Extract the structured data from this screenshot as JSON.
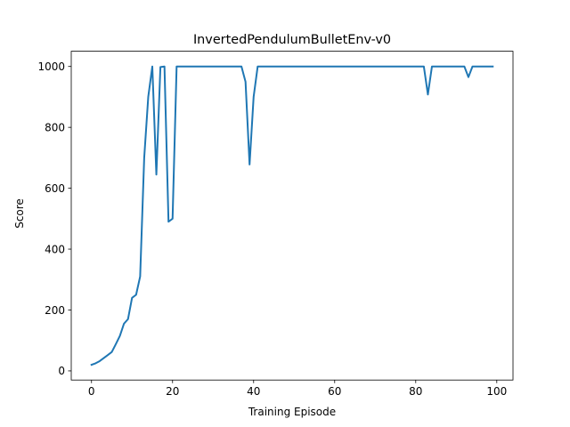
{
  "chart_data": {
    "type": "line",
    "title": "InvertedPendulumBulletEnv-v0",
    "xlabel": "Training Episode",
    "ylabel": "Score",
    "xlim": [
      -5,
      104
    ],
    "ylim": [
      -30,
      1050
    ],
    "xticks": [
      0,
      20,
      40,
      60,
      80,
      100
    ],
    "yticks": [
      0,
      200,
      400,
      600,
      800,
      1000
    ],
    "grid": false,
    "line_color": "#1f77b4",
    "series": [
      {
        "name": "score",
        "x": [
          0,
          1,
          2,
          3,
          4,
          5,
          6,
          7,
          8,
          9,
          10,
          11,
          12,
          13,
          14,
          15,
          16,
          17,
          18,
          19,
          20,
          21,
          22,
          23,
          24,
          25,
          26,
          27,
          28,
          29,
          30,
          31,
          32,
          33,
          34,
          35,
          36,
          37,
          38,
          39,
          40,
          41,
          42,
          43,
          44,
          45,
          46,
          47,
          48,
          49,
          50,
          51,
          52,
          53,
          54,
          55,
          56,
          57,
          58,
          59,
          60,
          61,
          62,
          63,
          64,
          65,
          66,
          67,
          68,
          69,
          70,
          71,
          72,
          73,
          74,
          75,
          76,
          77,
          78,
          79,
          80,
          81,
          82,
          83,
          84,
          85,
          86,
          87,
          88,
          89,
          90,
          91,
          92,
          93,
          94,
          95,
          96,
          97,
          98,
          99
        ],
        "values": [
          20,
          25,
          32,
          42,
          52,
          62,
          88,
          115,
          155,
          170,
          240,
          250,
          310,
          700,
          900,
          1000,
          645,
          998,
          1000,
          490,
          500,
          1000,
          1000,
          1000,
          1000,
          1000,
          1000,
          1000,
          1000,
          1000,
          1000,
          1000,
          1000,
          1000,
          1000,
          1000,
          1000,
          1000,
          950,
          678,
          900,
          1000,
          1000,
          1000,
          1000,
          1000,
          1000,
          1000,
          1000,
          1000,
          1000,
          1000,
          1000,
          1000,
          1000,
          1000,
          1000,
          1000,
          1000,
          1000,
          1000,
          1000,
          1000,
          1000,
          1000,
          1000,
          1000,
          1000,
          1000,
          1000,
          1000,
          1000,
          1000,
          1000,
          1000,
          1000,
          1000,
          1000,
          1000,
          1000,
          1000,
          1000,
          1000,
          908,
          1000,
          1000,
          1000,
          1000,
          1000,
          1000,
          1000,
          1000,
          1000,
          965,
          1000,
          1000,
          1000,
          1000,
          1000,
          1000
        ]
      }
    ]
  }
}
